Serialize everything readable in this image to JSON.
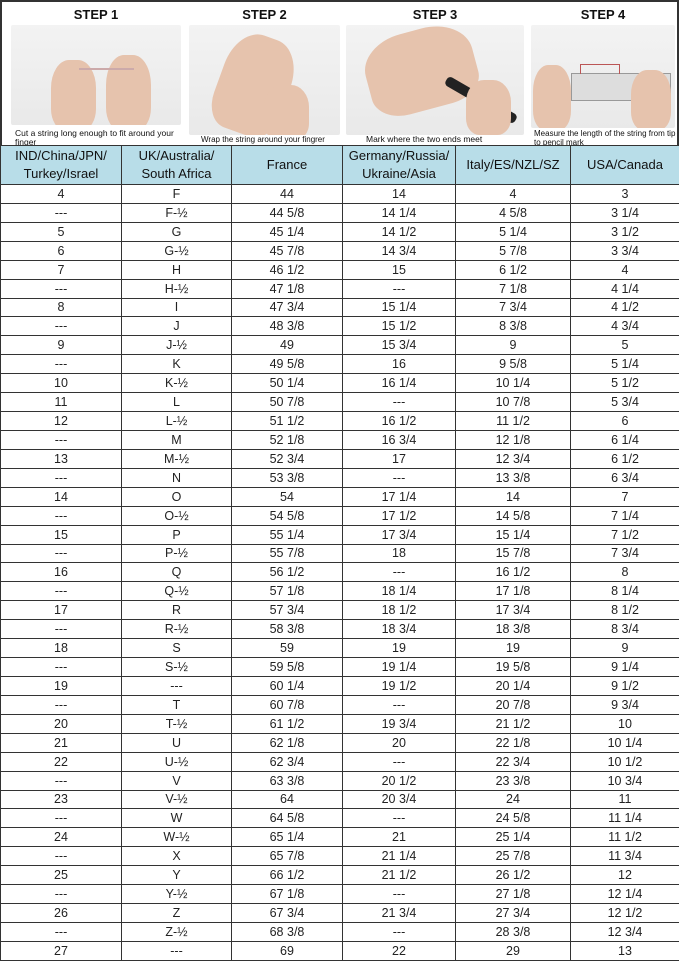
{
  "steps": [
    {
      "title": "STEP 1",
      "caption": "Cut a string long enough to fit around your finger"
    },
    {
      "title": "STEP 2",
      "caption": "Wrap the string around your fingrer"
    },
    {
      "title": "STEP 3",
      "caption": "Mark where the two ends meet"
    },
    {
      "title": "STEP 4",
      "caption": "Measure the length of the string from tip to pencil mark"
    }
  ],
  "table": {
    "headers": [
      "IND/China/JPN/ Turkey/Israel",
      "UK/Australia/ South Africa",
      "France",
      "Germany/Russia/ Ukraine/Asia",
      "Italy/ES/NZL/SZ",
      "USA/Canada"
    ],
    "header_color": "#b8dde8",
    "rows": [
      [
        "4",
        "F",
        "44",
        "14",
        "4",
        "3"
      ],
      [
        "---",
        "F-½",
        "44 5/8",
        "14 1/4",
        "4 5/8",
        "3 1/4"
      ],
      [
        "5",
        "G",
        "45 1/4",
        "14 1/2",
        "5 1/4",
        "3 1/2"
      ],
      [
        "6",
        "G-½",
        "45 7/8",
        "14 3/4",
        "5 7/8",
        "3 3/4"
      ],
      [
        "7",
        "H",
        "46 1/2",
        "15",
        "6 1/2",
        "4"
      ],
      [
        "---",
        "H-½",
        "47 1/8",
        "---",
        "7 1/8",
        "4 1/4"
      ],
      [
        "8",
        "I",
        "47 3/4",
        "15 1/4",
        "7 3/4",
        "4 1/2"
      ],
      [
        "---",
        "J",
        "48 3/8",
        "15 1/2",
        "8 3/8",
        "4 3/4"
      ],
      [
        "9",
        "J-½",
        "49",
        "15 3/4",
        "9",
        "5"
      ],
      [
        "---",
        "K",
        "49 5/8",
        "16",
        "9 5/8",
        "5 1/4"
      ],
      [
        "10",
        "K-½",
        "50 1/4",
        "16 1/4",
        "10 1/4",
        "5 1/2"
      ],
      [
        "11",
        "L",
        "50 7/8",
        "---",
        "10 7/8",
        "5 3/4"
      ],
      [
        "12",
        "L-½",
        "51 1/2",
        "16 1/2",
        "11 1/2",
        "6"
      ],
      [
        "---",
        "M",
        "52 1/8",
        "16 3/4",
        "12 1/8",
        "6 1/4"
      ],
      [
        "13",
        "M-½",
        "52 3/4",
        "17",
        "12 3/4",
        "6 1/2"
      ],
      [
        "---",
        "N",
        "53 3/8",
        "---",
        "13 3/8",
        "6 3/4"
      ],
      [
        "14",
        "O",
        "54",
        "17 1/4",
        "14",
        "7"
      ],
      [
        "---",
        "O-½",
        "54 5/8",
        "17 1/2",
        "14 5/8",
        "7 1/4"
      ],
      [
        "15",
        "P",
        "55 1/4",
        "17 3/4",
        "15 1/4",
        "7 1/2"
      ],
      [
        "---",
        "P-½",
        "55 7/8",
        "18",
        "15 7/8",
        "7 3/4"
      ],
      [
        "16",
        "Q",
        "56 1/2",
        "---",
        "16 1/2",
        "8"
      ],
      [
        "---",
        "Q-½",
        "57 1/8",
        "18 1/4",
        "17 1/8",
        "8 1/4"
      ],
      [
        "17",
        "R",
        "57 3/4",
        "18 1/2",
        "17 3/4",
        "8 1/2"
      ],
      [
        "---",
        "R-½",
        "58 3/8",
        "18 3/4",
        "18 3/8",
        "8 3/4"
      ],
      [
        "18",
        "S",
        "59",
        "19",
        "19",
        "9"
      ],
      [
        "---",
        "S-½",
        "59 5/8",
        "19 1/4",
        "19 5/8",
        "9 1/4"
      ],
      [
        "19",
        "---",
        "60 1/4",
        "19 1/2",
        "20 1/4",
        "9 1/2"
      ],
      [
        "---",
        "T",
        "60 7/8",
        "---",
        "20 7/8",
        "9 3/4"
      ],
      [
        "20",
        "T-½",
        "61 1/2",
        "19 3/4",
        "21 1/2",
        "10"
      ],
      [
        "21",
        "U",
        "62 1/8",
        "20",
        "22 1/8",
        "10 1/4"
      ],
      [
        "22",
        "U-½",
        "62 3/4",
        "---",
        "22 3/4",
        "10 1/2"
      ],
      [
        "---",
        "V",
        "63 3/8",
        "20 1/2",
        "23 3/8",
        "10 3/4"
      ],
      [
        "23",
        "V-½",
        "64",
        "20 3/4",
        "24",
        "11"
      ],
      [
        "---",
        "W",
        "64 5/8",
        "---",
        "24 5/8",
        "11 1/4"
      ],
      [
        "24",
        "W-½",
        "65 1/4",
        "21",
        "25 1/4",
        "11 1/2"
      ],
      [
        "---",
        "X",
        "65 7/8",
        "21 1/4",
        "25 7/8",
        "11 3/4"
      ],
      [
        "25",
        "Y",
        "66 1/2",
        "21 1/2",
        "26 1/2",
        "12"
      ],
      [
        "---",
        "Y-½",
        "67 1/8",
        "---",
        "27 1/8",
        "12 1/4"
      ],
      [
        "26",
        "Z",
        "67 3/4",
        "21 3/4",
        "27 3/4",
        "12 1/2"
      ],
      [
        "---",
        "Z-½",
        "68 3/8",
        "---",
        "28 3/8",
        "12 3/4"
      ],
      [
        "27",
        "---",
        "69",
        "22",
        "29",
        "13"
      ]
    ]
  }
}
